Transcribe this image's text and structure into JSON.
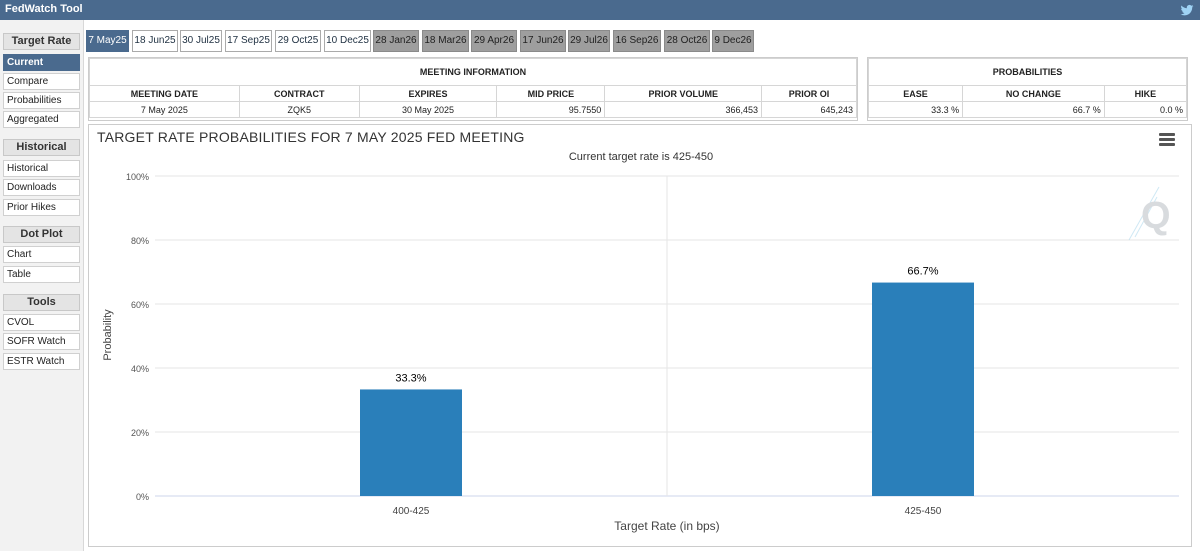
{
  "app": {
    "title": "FedWatch Tool",
    "twitter_icon": "twitter-bird-icon"
  },
  "sidebar": {
    "sections": [
      {
        "label": "Target Rate",
        "items": [
          {
            "label": "Current",
            "active": true
          },
          {
            "label": "Compare"
          },
          {
            "label": "Probabilities"
          },
          {
            "label": "Aggregated"
          }
        ]
      },
      {
        "label": "Historical",
        "items": [
          {
            "label": "Historical"
          },
          {
            "label": "Downloads"
          },
          {
            "label": "Prior Hikes"
          }
        ]
      },
      {
        "label": "Dot Plot",
        "items": [
          {
            "label": "Chart"
          },
          {
            "label": "Table"
          }
        ]
      },
      {
        "label": "Tools",
        "items": [
          {
            "label": "CVOL"
          },
          {
            "label": "SOFR Watch"
          },
          {
            "label": "ESTR Watch"
          }
        ]
      }
    ]
  },
  "tabs": [
    {
      "label": "7 May25",
      "state": "active"
    },
    {
      "label": "18 Jun25",
      "state": "normal"
    },
    {
      "label": "30 Jul25",
      "state": "normal"
    },
    {
      "label": "17 Sep25",
      "state": "normal"
    },
    {
      "label": "29 Oct25",
      "state": "normal"
    },
    {
      "label": "10 Dec25",
      "state": "normal"
    },
    {
      "label": "28 Jan26",
      "state": "gray"
    },
    {
      "label": "18 Mar26",
      "state": "gray"
    },
    {
      "label": "29 Apr26",
      "state": "gray"
    },
    {
      "label": "17 Jun26",
      "state": "gray"
    },
    {
      "label": "29 Jul26",
      "state": "gray"
    },
    {
      "label": "16 Sep26",
      "state": "gray"
    },
    {
      "label": "28 Oct26",
      "state": "gray"
    },
    {
      "label": "9 Dec26",
      "state": "gray"
    }
  ],
  "meeting_info": {
    "header": "MEETING INFORMATION",
    "columns": [
      "MEETING DATE",
      "CONTRACT",
      "EXPIRES",
      "MID PRICE",
      "PRIOR VOLUME",
      "PRIOR OI"
    ],
    "values": [
      "7 May 2025",
      "ZQK5",
      "30 May 2025",
      "95.7550",
      "366,453",
      "645,243"
    ]
  },
  "probabilities": {
    "header": "PROBABILITIES",
    "columns": [
      "EASE",
      "NO CHANGE",
      "HIKE"
    ],
    "values": [
      "33.3 %",
      "66.7 %",
      "0.0 %"
    ]
  },
  "chart": {
    "title": "TARGET RATE PROBABILITIES FOR 7 MAY 2025 FED MEETING",
    "subtitle": "Current target rate is 425-450",
    "menu_icon": "hamburger-menu-icon",
    "watermark_icon": "q-logo-icon",
    "bar_color": "#2a7fba"
  },
  "chart_data": {
    "type": "bar",
    "title": "TARGET RATE PROBABILITIES FOR 7 MAY 2025 FED MEETING",
    "subtitle": "Current target rate is 425-450",
    "categories": [
      "400-425",
      "425-450"
    ],
    "values": [
      33.3,
      66.7
    ],
    "data_labels": [
      "33.3%",
      "66.7%"
    ],
    "xlabel": "Target Rate (in bps)",
    "ylabel": "Probability",
    "ylim": [
      0,
      100
    ],
    "yticks": [
      "0%",
      "20%",
      "40%",
      "60%",
      "80%",
      "100%"
    ],
    "ytick_values": [
      0,
      20,
      40,
      60,
      80,
      100
    ],
    "grid": true,
    "legend": "none"
  }
}
